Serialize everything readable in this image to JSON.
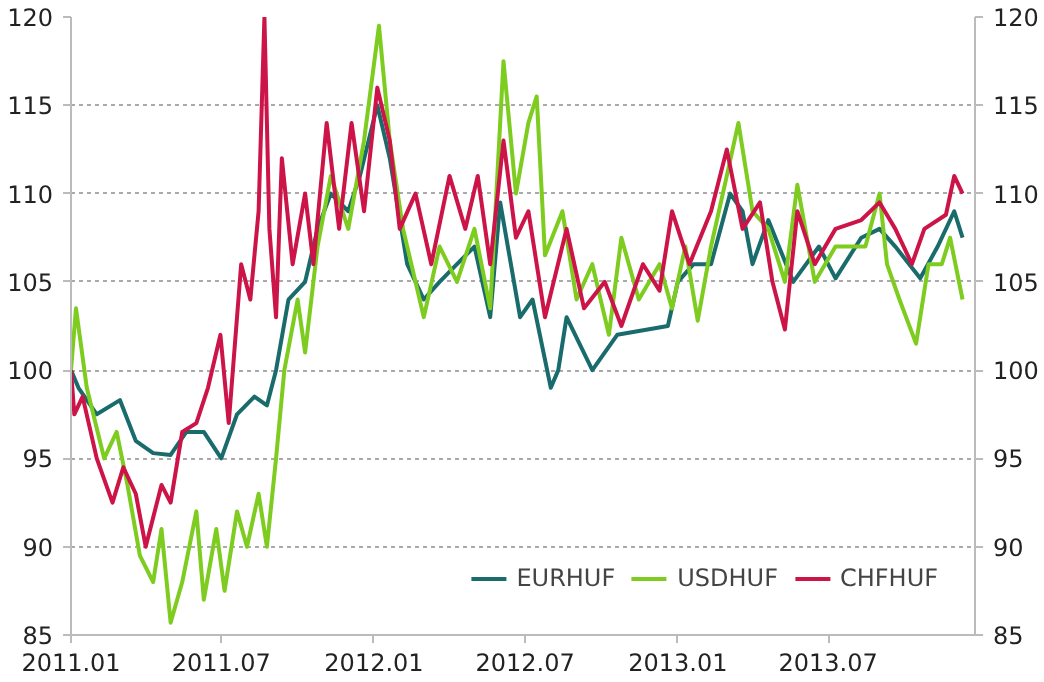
{
  "chart_data": {
    "type": "line",
    "grid": "y",
    "legend": "bottom right",
    "line_style": "solid",
    "xlim": [
      "2011-01-01",
      "2013-12-25"
    ],
    "xticks": [
      {
        "value": "2011-01-01",
        "label": "2011.01"
      },
      {
        "value": "2011-07-01",
        "label": "2011.07"
      },
      {
        "value": "2012-01-01",
        "label": "2012.01"
      },
      {
        "value": "2012-07-01",
        "label": "2012.07"
      },
      {
        "value": "2013-01-01",
        "label": "2013.01"
      },
      {
        "value": "2013-07-01",
        "label": "2013.07"
      }
    ],
    "ylim": [
      85,
      120
    ],
    "yticks": [
      85,
      90,
      95,
      100,
      105,
      110,
      115,
      120
    ],
    "y2lim": [
      85,
      120
    ],
    "y2ticks": [
      85,
      90,
      95,
      100,
      105,
      110,
      115,
      120
    ],
    "series": [
      {
        "name": "EURHUF",
        "color": "#1a6b6b",
        "x": [
          "2011-01-01",
          "2011-01-10",
          "2011-02-01",
          "2011-03-01",
          "2011-03-20",
          "2011-04-10",
          "2011-05-01",
          "2011-05-20",
          "2011-06-10",
          "2011-07-01",
          "2011-07-20",
          "2011-08-10",
          "2011-08-25",
          "2011-09-05",
          "2011-09-20",
          "2011-10-10",
          "2011-10-25",
          "2011-11-10",
          "2011-12-01",
          "2011-12-15",
          "2012-01-05",
          "2012-01-20",
          "2012-02-10",
          "2012-03-01",
          "2012-03-20",
          "2012-04-10",
          "2012-05-01",
          "2012-05-20",
          "2012-06-01",
          "2012-06-25",
          "2012-07-10",
          "2012-08-01",
          "2012-08-10",
          "2012-08-20",
          "2012-09-20",
          "2012-10-20",
          "2012-12-20",
          "2013-01-01",
          "2013-01-20",
          "2013-02-10",
          "2013-03-05",
          "2013-03-20",
          "2013-04-01",
          "2013-04-20",
          "2013-05-20",
          "2013-06-20",
          "2013-07-10",
          "2013-08-10",
          "2013-09-01",
          "2013-09-20",
          "2013-10-20",
          "2013-11-10",
          "2013-11-30",
          "2013-12-10"
        ],
        "values": [
          100,
          99,
          97.5,
          98.3,
          96,
          95.3,
          95.2,
          96.5,
          96.5,
          95,
          97.5,
          98.5,
          98,
          100,
          104,
          105,
          108,
          110,
          109,
          111,
          115,
          112,
          106,
          104,
          105,
          106,
          107,
          103,
          109.5,
          103,
          104,
          99,
          100,
          103,
          100,
          102,
          102.5,
          105,
          106,
          106,
          110,
          109,
          106,
          108.5,
          105,
          107,
          105.2,
          107.5,
          108,
          107,
          105.2,
          107,
          109,
          107.5
        ]
      },
      {
        "name": "USDHUF",
        "color": "#7dcc1f",
        "x": [
          "2011-01-01",
          "2011-01-07",
          "2011-01-20",
          "2011-02-10",
          "2011-02-25",
          "2011-03-10",
          "2011-03-25",
          "2011-04-10",
          "2011-04-20",
          "2011-05-01",
          "2011-05-15",
          "2011-06-01",
          "2011-06-10",
          "2011-06-25",
          "2011-07-05",
          "2011-07-20",
          "2011-08-01",
          "2011-08-15",
          "2011-08-25",
          "2011-09-05",
          "2011-09-15",
          "2011-10-01",
          "2011-10-10",
          "2011-10-25",
          "2011-11-10",
          "2011-12-01",
          "2011-12-20",
          "2012-01-07",
          "2012-01-20",
          "2012-02-05",
          "2012-03-01",
          "2012-03-20",
          "2012-04-10",
          "2012-05-01",
          "2012-05-20",
          "2012-06-05",
          "2012-06-20",
          "2012-07-05",
          "2012-07-15",
          "2012-07-25",
          "2012-08-15",
          "2012-09-01",
          "2012-09-20",
          "2012-10-10",
          "2012-10-25",
          "2012-11-15",
          "2012-12-10",
          "2012-12-25",
          "2013-01-10",
          "2013-01-25",
          "2013-02-10",
          "2013-03-01",
          "2013-03-15",
          "2013-04-01",
          "2013-04-20",
          "2013-05-10",
          "2013-05-25",
          "2013-06-15",
          "2013-07-10",
          "2013-08-15",
          "2013-09-01",
          "2013-09-10",
          "2013-09-25",
          "2013-10-15",
          "2013-10-30",
          "2013-11-15",
          "2013-11-25",
          "2013-12-10"
        ],
        "values": [
          100,
          103.5,
          99,
          95,
          96.5,
          93.5,
          89.5,
          88,
          91,
          85.7,
          88,
          92,
          87,
          91,
          87.5,
          92,
          90,
          93,
          90,
          95,
          100,
          104,
          101,
          107,
          111,
          108,
          113,
          119.5,
          113,
          108,
          103,
          107,
          105,
          108,
          103.5,
          117.5,
          110,
          114,
          115.5,
          106.5,
          109,
          104,
          106,
          102,
          107.5,
          104,
          106,
          103.5,
          107,
          102.8,
          107,
          111,
          114,
          109,
          108,
          105,
          110.5,
          105,
          107,
          107,
          110,
          106,
          104,
          101.5,
          106,
          106,
          107.5,
          104
        ]
      },
      {
        "name": "CHFHUF",
        "color": "#cc1448",
        "x": [
          "2011-01-01",
          "2011-01-05",
          "2011-01-15",
          "2011-02-01",
          "2011-02-20",
          "2011-03-05",
          "2011-03-20",
          "2011-04-01",
          "2011-04-20",
          "2011-05-01",
          "2011-05-15",
          "2011-06-01",
          "2011-06-15",
          "2011-06-30",
          "2011-07-10",
          "2011-07-25",
          "2011-08-05",
          "2011-08-15",
          "2011-08-22",
          "2011-08-28",
          "2011-09-05",
          "2011-09-12",
          "2011-09-25",
          "2011-10-10",
          "2011-10-20",
          "2011-11-05",
          "2011-11-20",
          "2011-12-05",
          "2011-12-20",
          "2012-01-05",
          "2012-01-20",
          "2012-02-01",
          "2012-02-20",
          "2012-03-10",
          "2012-04-01",
          "2012-04-20",
          "2012-05-05",
          "2012-05-20",
          "2012-06-05",
          "2012-06-20",
          "2012-07-05",
          "2012-07-25",
          "2012-08-20",
          "2012-09-10",
          "2012-10-05",
          "2012-10-25",
          "2012-11-20",
          "2012-12-10",
          "2012-12-25",
          "2013-01-15",
          "2013-02-10",
          "2013-03-01",
          "2013-03-20",
          "2013-04-10",
          "2013-04-25",
          "2013-05-10",
          "2013-05-25",
          "2013-06-15",
          "2013-07-10",
          "2013-08-10",
          "2013-09-01",
          "2013-09-20",
          "2013-10-10",
          "2013-10-25",
          "2013-11-20",
          "2013-11-30",
          "2013-12-10"
        ],
        "values": [
          100,
          97.5,
          98.5,
          95,
          92.5,
          94.5,
          93,
          90,
          93.5,
          92.5,
          96.5,
          97,
          99,
          102,
          97,
          106,
          104,
          109,
          120,
          108,
          103,
          112,
          106,
          110,
          106,
          114,
          108,
          114,
          109,
          116,
          113,
          108,
          110,
          106,
          111,
          108,
          111,
          106,
          113,
          107.5,
          109,
          103,
          108,
          103.5,
          105,
          102.5,
          106,
          104.5,
          109,
          106,
          109,
          112.5,
          108,
          109.5,
          105,
          102.3,
          109,
          106,
          108,
          108.5,
          109.5,
          108,
          106,
          108,
          108.8,
          111,
          110
        ]
      }
    ]
  }
}
